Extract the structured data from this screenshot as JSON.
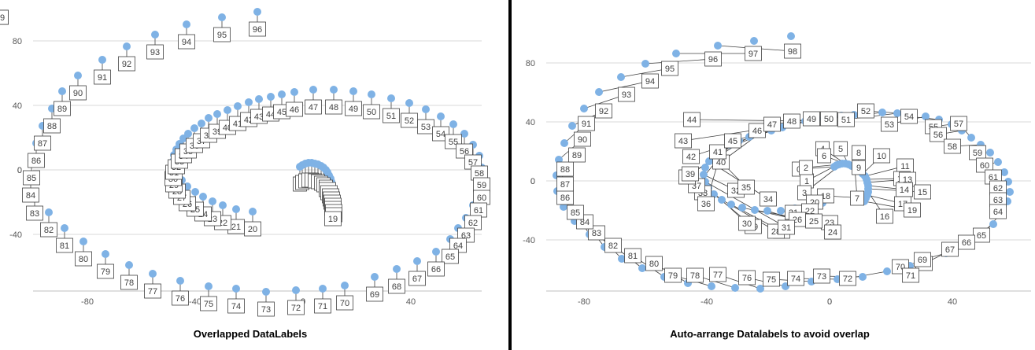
{
  "chart_data": [
    {
      "type": "scatter",
      "caption": "Overlapped DataLabels",
      "xlim": [
        -90,
        60
      ],
      "ylim": [
        -70,
        100
      ],
      "xticks": [
        -80,
        -40,
        0,
        40
      ],
      "yticks": [
        -40,
        0,
        40,
        80
      ],
      "grid": "horizontal",
      "marker_color": "#7fb2e5",
      "label_mode": "overlap",
      "series": [
        {
          "point_labels": "index",
          "points": []
        }
      ]
    },
    {
      "type": "scatter",
      "caption": "Auto-arrange Datalabels to avoid overlap",
      "xlim": [
        -90,
        60
      ],
      "ylim": [
        -70,
        100
      ],
      "xticks": [
        -80,
        -40,
        0,
        40
      ],
      "yticks": [
        -40,
        0,
        40,
        80
      ],
      "grid": "horizontal",
      "marker_color": "#7fb2e5",
      "label_mode": "auto-arrange",
      "series": [
        {
          "point_labels": "index",
          "points": []
        }
      ]
    }
  ]
}
